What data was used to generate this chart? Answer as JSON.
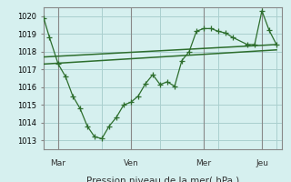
{
  "bg_color": "#d6f0ef",
  "grid_color": "#aacfcf",
  "line_color": "#2d6e2d",
  "axis_color": "#888888",
  "xlabel": "Pression niveau de la mer( hPa )",
  "ylim": [
    1012.5,
    1020.5
  ],
  "yticks": [
    1013,
    1014,
    1015,
    1016,
    1017,
    1018,
    1019,
    1020
  ],
  "day_labels": [
    "Mar",
    "Ven",
    "Mer",
    "Jeu"
  ],
  "day_positions": [
    0.5,
    3.0,
    5.5,
    7.5
  ],
  "vline_positions": [
    0.5,
    3.0,
    5.5,
    7.5
  ],
  "line1_x": [
    0,
    0.2,
    0.5,
    0.75,
    1.0,
    1.25,
    1.5,
    1.75,
    2.0,
    2.25,
    2.5,
    2.75,
    3.0,
    3.25,
    3.5,
    3.75,
    4.0,
    4.25,
    4.5,
    4.75,
    5.0,
    5.25,
    5.5,
    5.75,
    6.0,
    6.25,
    6.5,
    7.0,
    7.25,
    7.5,
    7.75,
    8.0
  ],
  "line1_y": [
    1019.9,
    1018.8,
    1017.3,
    1016.6,
    1015.5,
    1014.8,
    1013.8,
    1013.2,
    1013.1,
    1013.8,
    1014.3,
    1015.0,
    1015.15,
    1015.5,
    1016.2,
    1016.7,
    1016.15,
    1016.3,
    1016.05,
    1017.5,
    1018.0,
    1019.15,
    1019.3,
    1019.3,
    1019.15,
    1019.05,
    1018.8,
    1018.4,
    1018.4,
    1020.3,
    1019.2,
    1018.4
  ],
  "line2_x": [
    0,
    8.0
  ],
  "line2_y": [
    1017.7,
    1018.4
  ],
  "line3_x": [
    0,
    8.0
  ],
  "line3_y": [
    1017.3,
    1018.1
  ],
  "xlim": [
    0,
    8.2
  ],
  "figsize": [
    3.2,
    2.0
  ],
  "dpi": 100
}
